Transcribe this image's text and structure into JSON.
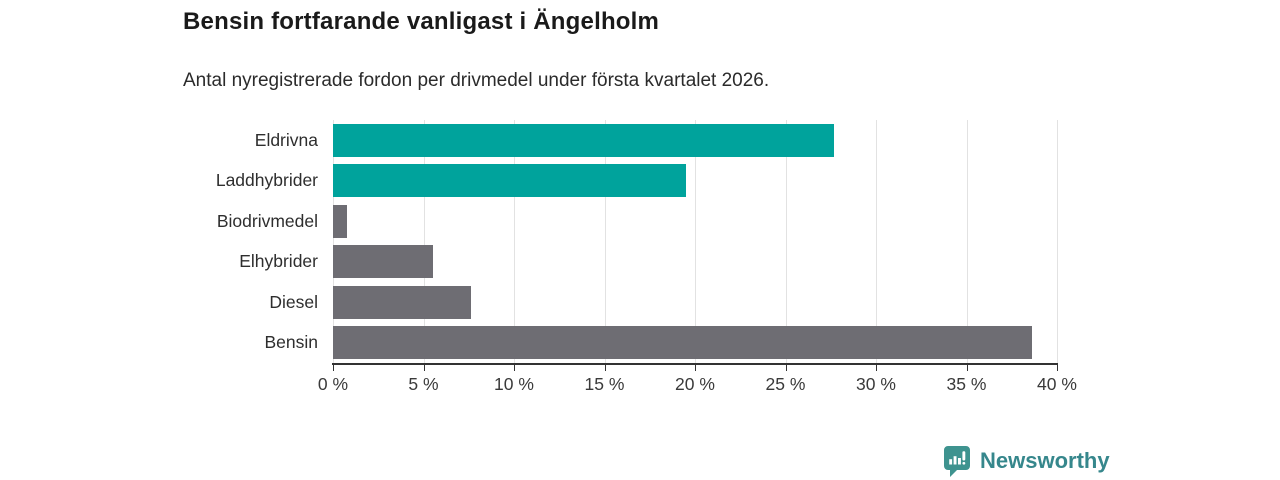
{
  "header": {
    "title": "Bensin fortfarande vanligast i Ängelholm",
    "subtitle": "Antal nyregistrerade fordon per drivmedel under första kvartalet 2026."
  },
  "chart_data": {
    "type": "bar",
    "orientation": "horizontal",
    "title": "Bensin fortfarande vanligast i Ängelholm",
    "subtitle": "Antal nyregistrerade fordon per drivmedel under första kvartalet 2026.",
    "categories": [
      "Eldrivna",
      "Laddhybrider",
      "Biodrivmedel",
      "Elhybrider",
      "Diesel",
      "Bensin"
    ],
    "values": [
      27.7,
      19.5,
      0.8,
      5.5,
      7.6,
      38.6
    ],
    "unit": "%",
    "bar_colors": [
      "#00a39c",
      "#00a39c",
      "#6e6d73",
      "#6e6d73",
      "#6e6d73",
      "#6e6d73"
    ],
    "xlim": [
      0,
      40
    ],
    "x_ticks": [
      0,
      5,
      10,
      15,
      20,
      25,
      30,
      35,
      40
    ],
    "x_tick_labels": [
      "0 %",
      "5 %",
      "10 %",
      "15 %",
      "20 %",
      "25 %",
      "30 %",
      "35 %",
      "40 %"
    ],
    "grid": true,
    "legend": false,
    "xlabel": "",
    "ylabel": ""
  },
  "colors": {
    "teal": "#00a39c",
    "gray": "#6e6d73",
    "grid": "#e2e2e2",
    "axis": "#333333",
    "brand_teal": "#36878c",
    "brand_icon_teal": "#3e938f"
  },
  "footer": {
    "brand": "Newsworthy",
    "logo_icon": "bar-chart-speech-bubble-icon"
  }
}
